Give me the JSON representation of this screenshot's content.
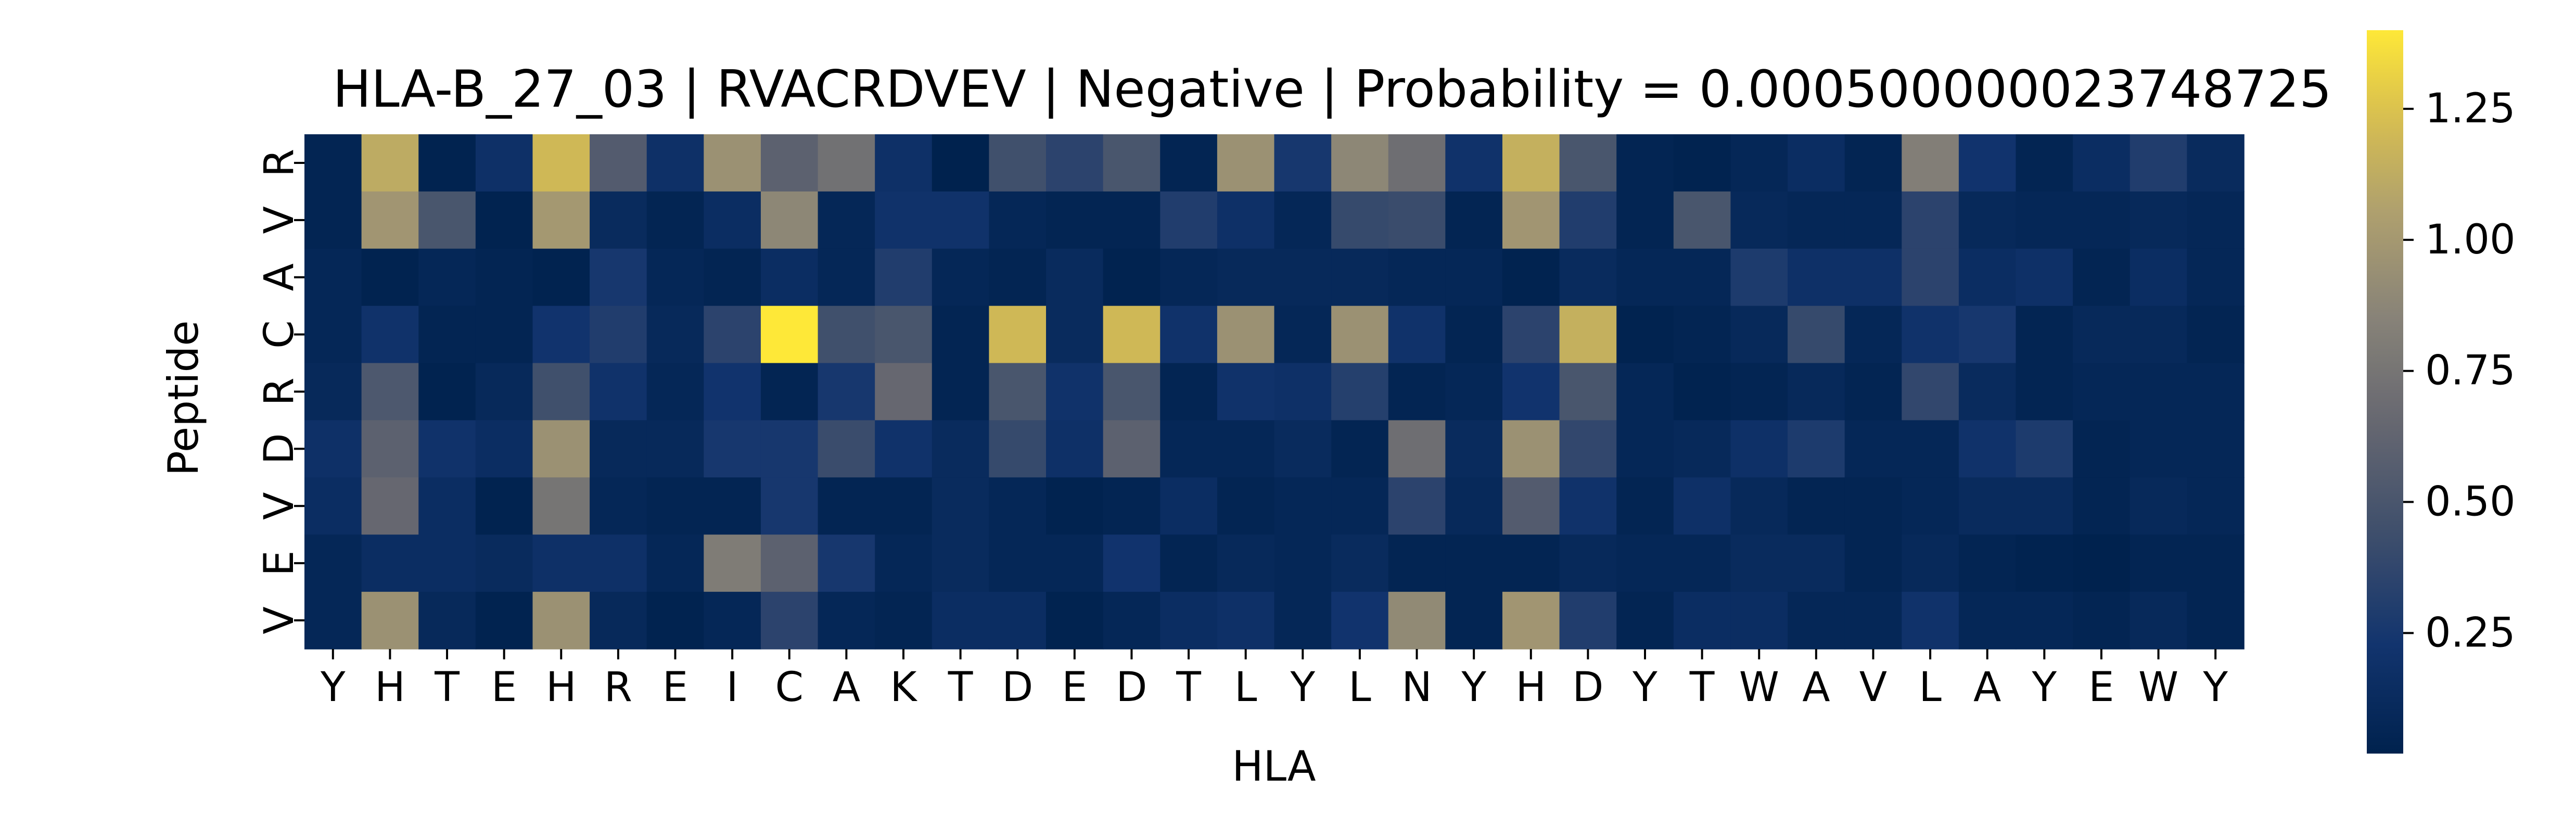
{
  "chart_data": {
    "type": "heatmap",
    "title": "HLA-B_27_03 | RVACRDVEV | Negative | Probability = 0.000500000023748725",
    "xlabel": "HLA",
    "ylabel": "Peptide",
    "x_labels": [
      "Y",
      "H",
      "T",
      "E",
      "H",
      "R",
      "E",
      "I",
      "C",
      "A",
      "K",
      "T",
      "D",
      "E",
      "D",
      "T",
      "L",
      "Y",
      "L",
      "N",
      "Y",
      "H",
      "D",
      "Y",
      "T",
      "W",
      "A",
      "V",
      "L",
      "A",
      "Y",
      "E",
      "W",
      "Y"
    ],
    "y_labels": [
      "R",
      "V",
      "A",
      "C",
      "R",
      "D",
      "V",
      "E",
      "V"
    ],
    "values": [
      [
        0.05,
        1.12,
        0.03,
        0.18,
        1.2,
        0.55,
        0.18,
        0.95,
        0.6,
        0.72,
        0.18,
        0.02,
        0.45,
        0.35,
        0.5,
        0.05,
        0.95,
        0.25,
        0.88,
        0.7,
        0.2,
        1.15,
        0.5,
        0.05,
        0.03,
        0.08,
        0.15,
        0.05,
        0.82,
        0.22,
        0.05,
        0.15,
        0.3,
        0.12
      ],
      [
        0.05,
        0.98,
        0.5,
        0.03,
        1.0,
        0.12,
        0.05,
        0.15,
        0.88,
        0.08,
        0.2,
        0.2,
        0.08,
        0.05,
        0.05,
        0.3,
        0.18,
        0.08,
        0.4,
        0.42,
        0.05,
        0.98,
        0.3,
        0.05,
        0.5,
        0.1,
        0.08,
        0.08,
        0.35,
        0.1,
        0.08,
        0.08,
        0.1,
        0.08
      ],
      [
        0.08,
        0.03,
        0.08,
        0.05,
        0.03,
        0.25,
        0.08,
        0.05,
        0.15,
        0.08,
        0.3,
        0.08,
        0.05,
        0.12,
        0.03,
        0.08,
        0.1,
        0.1,
        0.1,
        0.08,
        0.08,
        0.03,
        0.12,
        0.08,
        0.08,
        0.28,
        0.18,
        0.18,
        0.35,
        0.15,
        0.18,
        0.05,
        0.15,
        0.08
      ],
      [
        0.08,
        0.2,
        0.05,
        0.05,
        0.22,
        0.3,
        0.1,
        0.35,
        1.4,
        0.45,
        0.5,
        0.05,
        1.2,
        0.12,
        1.2,
        0.2,
        0.95,
        0.08,
        0.95,
        0.2,
        0.05,
        0.35,
        1.15,
        0.03,
        0.05,
        0.1,
        0.4,
        0.08,
        0.2,
        0.25,
        0.05,
        0.1,
        0.1,
        0.05
      ],
      [
        0.1,
        0.52,
        0.03,
        0.1,
        0.45,
        0.2,
        0.08,
        0.22,
        0.05,
        0.25,
        0.65,
        0.05,
        0.5,
        0.2,
        0.5,
        0.05,
        0.2,
        0.18,
        0.32,
        0.05,
        0.08,
        0.22,
        0.5,
        0.08,
        0.03,
        0.05,
        0.1,
        0.05,
        0.38,
        0.12,
        0.05,
        0.08,
        0.08,
        0.08
      ],
      [
        0.18,
        0.6,
        0.2,
        0.15,
        0.95,
        0.1,
        0.1,
        0.25,
        0.25,
        0.42,
        0.2,
        0.12,
        0.4,
        0.18,
        0.6,
        0.08,
        0.08,
        0.12,
        0.05,
        0.7,
        0.12,
        0.95,
        0.38,
        0.08,
        0.1,
        0.18,
        0.28,
        0.08,
        0.08,
        0.2,
        0.28,
        0.05,
        0.08,
        0.08
      ],
      [
        0.15,
        0.65,
        0.15,
        0.03,
        0.75,
        0.08,
        0.05,
        0.05,
        0.25,
        0.05,
        0.05,
        0.12,
        0.08,
        0.03,
        0.05,
        0.15,
        0.05,
        0.08,
        0.08,
        0.35,
        0.1,
        0.55,
        0.2,
        0.05,
        0.18,
        0.1,
        0.05,
        0.05,
        0.08,
        0.12,
        0.12,
        0.05,
        0.1,
        0.08
      ],
      [
        0.08,
        0.15,
        0.15,
        0.12,
        0.18,
        0.18,
        0.08,
        0.8,
        0.6,
        0.25,
        0.08,
        0.12,
        0.08,
        0.08,
        0.22,
        0.05,
        0.1,
        0.08,
        0.12,
        0.05,
        0.05,
        0.05,
        0.1,
        0.08,
        0.08,
        0.12,
        0.12,
        0.05,
        0.1,
        0.05,
        0.03,
        0.02,
        0.05,
        0.05
      ],
      [
        0.08,
        0.95,
        0.1,
        0.03,
        0.95,
        0.1,
        0.03,
        0.08,
        0.35,
        0.08,
        0.05,
        0.15,
        0.15,
        0.03,
        0.08,
        0.15,
        0.18,
        0.08,
        0.22,
        0.9,
        0.05,
        0.98,
        0.3,
        0.05,
        0.15,
        0.15,
        0.08,
        0.08,
        0.2,
        0.08,
        0.08,
        0.05,
        0.1,
        0.05
      ]
    ],
    "colormap": "cividis",
    "colorbar": {
      "range": [
        0.02,
        1.4
      ],
      "ticks": [
        0.25,
        0.5,
        0.75,
        1.0,
        1.25
      ],
      "tick_labels": [
        "0.25",
        "0.50",
        "0.75",
        "1.00",
        "1.25"
      ]
    }
  }
}
